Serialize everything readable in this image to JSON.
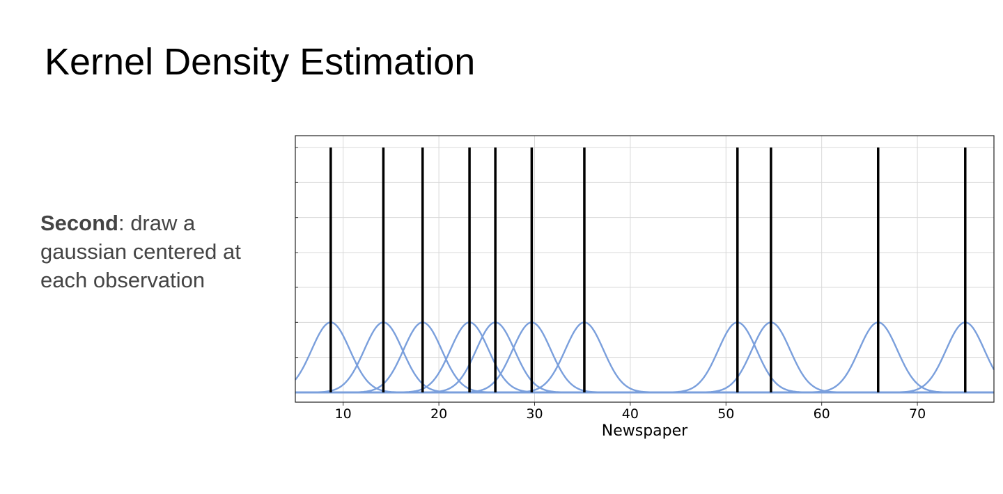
{
  "slide": {
    "title": "Kernel Density Estimation",
    "text_bold": "Second",
    "text_rest": ": draw a gaussian centered at each observation"
  },
  "chart_data": {
    "type": "line",
    "xlabel": "Newspaper",
    "ylabel": "",
    "title": "",
    "xlim": [
      5,
      78
    ],
    "ylim": [
      0,
      1
    ],
    "x_ticks": [
      10,
      20,
      30,
      40,
      50,
      60,
      70
    ],
    "y_gridlines": [
      0.143,
      0.286,
      0.429,
      0.571,
      0.714,
      0.857,
      1.0
    ],
    "grid": true,
    "legend": "none",
    "observations": [
      8.7,
      14.2,
      18.3,
      23.2,
      25.9,
      29.7,
      35.2,
      51.2,
      54.7,
      65.9,
      75.0
    ],
    "observation_line_height": 1.0,
    "gaussian_peak": 0.286,
    "gaussian_sigma": 2.0,
    "colors": {
      "observations": "#000000",
      "gaussians": "#7a9fdc",
      "grid": "#d8d8d8"
    }
  }
}
